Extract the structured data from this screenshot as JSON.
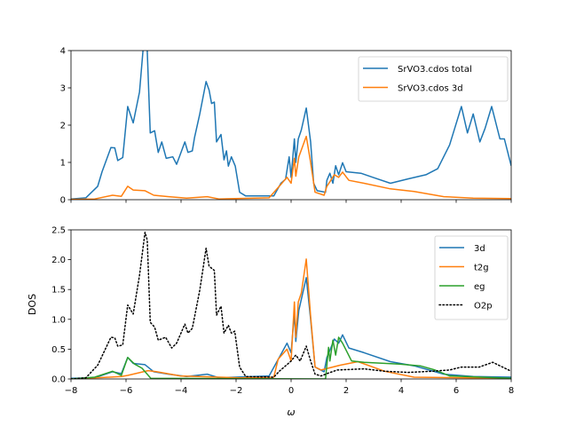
{
  "chart_data": [
    {
      "type": "line",
      "panel": "top",
      "xlim": [
        -8,
        8
      ],
      "ylim": [
        0,
        4
      ],
      "xticks": [
        -8,
        -6,
        -4,
        -2,
        0,
        2,
        4,
        6,
        8
      ],
      "xticklabels_shown": false,
      "yticks": [
        0,
        1,
        2,
        3,
        4
      ],
      "yticklabels": [
        "0",
        "1",
        "2",
        "3",
        "4"
      ],
      "xlabel": "",
      "ylabel": "",
      "grid": false,
      "legend": "top-right",
      "series": [
        {
          "name": "SrVO3.cdos total",
          "color": "#1f77b4",
          "style": "solid",
          "points": [
            [
              -8,
              0.02
            ],
            [
              -7.46,
              0.05
            ],
            [
              -7.03,
              0.36
            ],
            [
              -6.87,
              0.75
            ],
            [
              -6.55,
              1.4
            ],
            [
              -6.41,
              1.39
            ],
            [
              -6.3,
              1.05
            ],
            [
              -6.12,
              1.13
            ],
            [
              -5.94,
              2.5
            ],
            [
              -5.74,
              2.06
            ],
            [
              -5.51,
              2.89
            ],
            [
              -5.4,
              3.85
            ],
            [
              -5.33,
              4.5
            ],
            [
              -5.23,
              4.0
            ],
            [
              -5.12,
              1.79
            ],
            [
              -4.96,
              1.85
            ],
            [
              -4.83,
              1.27
            ],
            [
              -4.7,
              1.55
            ],
            [
              -4.54,
              1.11
            ],
            [
              -4.3,
              1.15
            ],
            [
              -4.16,
              0.95
            ],
            [
              -4.02,
              1.23
            ],
            [
              -3.86,
              1.55
            ],
            [
              -3.75,
              1.27
            ],
            [
              -3.59,
              1.31
            ],
            [
              -3.51,
              1.67
            ],
            [
              -3.32,
              2.3
            ],
            [
              -3.09,
              3.17
            ],
            [
              -2.98,
              2.94
            ],
            [
              -2.89,
              2.58
            ],
            [
              -2.79,
              2.62
            ],
            [
              -2.71,
              1.55
            ],
            [
              -2.55,
              1.75
            ],
            [
              -2.44,
              1.07
            ],
            [
              -2.35,
              1.31
            ],
            [
              -2.28,
              0.9
            ],
            [
              -2.17,
              1.15
            ],
            [
              -2.03,
              0.9
            ],
            [
              -1.87,
              0.2
            ],
            [
              -1.65,
              0.1
            ],
            [
              -0.63,
              0.1
            ],
            [
              -0.37,
              0.44
            ],
            [
              -0.2,
              0.55
            ],
            [
              -0.15,
              0.79
            ],
            [
              -0.07,
              1.15
            ],
            [
              0.0,
              0.6
            ],
            [
              0.12,
              1.63
            ],
            [
              0.17,
              1.0
            ],
            [
              0.26,
              1.63
            ],
            [
              0.37,
              1.87
            ],
            [
              0.55,
              2.46
            ],
            [
              0.71,
              1.55
            ],
            [
              0.82,
              0.44
            ],
            [
              0.95,
              0.24
            ],
            [
              1.25,
              0.2
            ],
            [
              1.3,
              0.52
            ],
            [
              1.41,
              0.71
            ],
            [
              1.52,
              0.44
            ],
            [
              1.62,
              0.91
            ],
            [
              1.73,
              0.67
            ],
            [
              1.87,
              0.99
            ],
            [
              2.0,
              0.75
            ],
            [
              2.54,
              0.71
            ],
            [
              2.97,
              0.6
            ],
            [
              3.61,
              0.44
            ],
            [
              4.26,
              0.56
            ],
            [
              4.9,
              0.67
            ],
            [
              5.33,
              0.83
            ],
            [
              5.76,
              1.47
            ],
            [
              6.19,
              2.5
            ],
            [
              6.41,
              1.79
            ],
            [
              6.62,
              2.3
            ],
            [
              6.86,
              1.55
            ],
            [
              7.05,
              1.91
            ],
            [
              7.29,
              2.5
            ],
            [
              7.59,
              1.63
            ],
            [
              7.75,
              1.63
            ],
            [
              8.0,
              0.91
            ]
          ]
        },
        {
          "name": "SrVO3.cdos 3d",
          "color": "#ff7f0e",
          "style": "solid",
          "points": [
            [
              -8,
              0.01
            ],
            [
              -7.14,
              0.02
            ],
            [
              -6.49,
              0.12
            ],
            [
              -6.17,
              0.09
            ],
            [
              -5.94,
              0.36
            ],
            [
              -5.74,
              0.26
            ],
            [
              -5.31,
              0.24
            ],
            [
              -4.99,
              0.12
            ],
            [
              -4.45,
              0.08
            ],
            [
              -3.8,
              0.04
            ],
            [
              -3.05,
              0.08
            ],
            [
              -2.62,
              0.02
            ],
            [
              -0.8,
              0.05
            ],
            [
              -0.42,
              0.37
            ],
            [
              -0.15,
              0.6
            ],
            [
              0.0,
              0.44
            ],
            [
              0.12,
              1.11
            ],
            [
              0.17,
              0.63
            ],
            [
              0.28,
              1.15
            ],
            [
              0.55,
              1.7
            ],
            [
              0.71,
              1.0
            ],
            [
              0.87,
              0.2
            ],
            [
              1.2,
              0.12
            ],
            [
              1.3,
              0.36
            ],
            [
              1.41,
              0.48
            ],
            [
              1.57,
              0.67
            ],
            [
              1.73,
              0.6
            ],
            [
              1.87,
              0.74
            ],
            [
              2.1,
              0.52
            ],
            [
              2.65,
              0.44
            ],
            [
              3.61,
              0.29
            ],
            [
              4.47,
              0.22
            ],
            [
              5.55,
              0.08
            ],
            [
              6.62,
              0.04
            ],
            [
              8.0,
              0.03
            ]
          ]
        }
      ]
    },
    {
      "type": "line",
      "panel": "bottom",
      "xlim": [
        -8,
        8
      ],
      "ylim": [
        0,
        2.5
      ],
      "xticks": [
        -8,
        -6,
        -4,
        -2,
        0,
        2,
        4,
        6,
        8
      ],
      "xticklabels": [
        "−8",
        "−6",
        "−4",
        "−2",
        "0",
        "2",
        "4",
        "6",
        "8"
      ],
      "yticks": [
        0,
        0.5,
        1,
        1.5,
        2,
        2.5
      ],
      "yticklabels": [
        "0.0",
        "0.5",
        "1.0",
        "1.5",
        "2.0",
        "2.5"
      ],
      "xlabel": "ω",
      "ylabel": "DOS",
      "grid": false,
      "legend": "top-right",
      "series": [
        {
          "name": "3d",
          "color": "#1f77b4",
          "style": "solid",
          "points": [
            [
              -8,
              0.01
            ],
            [
              -7.14,
              0.02
            ],
            [
              -6.49,
              0.12
            ],
            [
              -6.17,
              0.09
            ],
            [
              -5.94,
              0.36
            ],
            [
              -5.74,
              0.26
            ],
            [
              -5.31,
              0.24
            ],
            [
              -4.99,
              0.12
            ],
            [
              -4.45,
              0.08
            ],
            [
              -3.8,
              0.04
            ],
            [
              -3.05,
              0.08
            ],
            [
              -2.62,
              0.02
            ],
            [
              -0.8,
              0.05
            ],
            [
              -0.42,
              0.37
            ],
            [
              -0.15,
              0.6
            ],
            [
              0.0,
              0.44
            ],
            [
              0.12,
              1.11
            ],
            [
              0.17,
              0.63
            ],
            [
              0.28,
              1.15
            ],
            [
              0.55,
              1.7
            ],
            [
              0.71,
              1.0
            ],
            [
              0.87,
              0.2
            ],
            [
              1.2,
              0.12
            ],
            [
              1.3,
              0.36
            ],
            [
              1.41,
              0.48
            ],
            [
              1.57,
              0.67
            ],
            [
              1.73,
              0.6
            ],
            [
              1.87,
              0.74
            ],
            [
              2.1,
              0.52
            ],
            [
              2.65,
              0.44
            ],
            [
              3.61,
              0.29
            ],
            [
              4.47,
              0.22
            ],
            [
              5.55,
              0.08
            ],
            [
              6.62,
              0.04
            ],
            [
              8.0,
              0.03
            ]
          ]
        },
        {
          "name": "t2g",
          "color": "#ff7f0e",
          "style": "solid",
          "points": [
            [
              -8,
              0
            ],
            [
              -6.17,
              0.04
            ],
            [
              -5.94,
              0.06
            ],
            [
              -5.2,
              0.14
            ],
            [
              -4.88,
              0.12
            ],
            [
              -4.02,
              0.05
            ],
            [
              -1.87,
              0.02
            ],
            [
              -0.63,
              0.03
            ],
            [
              -0.47,
              0.33
            ],
            [
              -0.15,
              0.5
            ],
            [
              0,
              0.3
            ],
            [
              0.12,
              1.29
            ],
            [
              0.17,
              0.7
            ],
            [
              0.26,
              1.29
            ],
            [
              0.37,
              1.44
            ],
            [
              0.55,
              2.01
            ],
            [
              0.71,
              1.05
            ],
            [
              0.87,
              0.2
            ],
            [
              1.09,
              0.15
            ],
            [
              1.78,
              0.23
            ],
            [
              2.43,
              0.29
            ],
            [
              3.4,
              0.13
            ],
            [
              4.47,
              0.03
            ],
            [
              8,
              0.01
            ]
          ]
        },
        {
          "name": "eg",
          "color": "#2ca02c",
          "style": "solid",
          "points": [
            [
              -8,
              0
            ],
            [
              -7.14,
              0.03
            ],
            [
              -6.49,
              0.13
            ],
            [
              -6.17,
              0.06
            ],
            [
              -5.94,
              0.36
            ],
            [
              -5.69,
              0.25
            ],
            [
              -5.42,
              0.18
            ],
            [
              -5.1,
              0.01
            ],
            [
              1.25,
              0
            ],
            [
              1.36,
              0.53
            ],
            [
              1.41,
              0.3
            ],
            [
              1.52,
              0.65
            ],
            [
              1.62,
              0.4
            ],
            [
              1.73,
              0.7
            ],
            [
              1.87,
              0.6
            ],
            [
              2.2,
              0.3
            ],
            [
              2.65,
              0.28
            ],
            [
              3.94,
              0.25
            ],
            [
              4.69,
              0.22
            ],
            [
              5.23,
              0.15
            ],
            [
              5.76,
              0.05
            ],
            [
              8.0,
              0.01
            ]
          ]
        },
        {
          "name": "O2p",
          "color": "#000000",
          "style": "dotted",
          "points": [
            [
              -8,
              0
            ],
            [
              -7.46,
              0.02
            ],
            [
              -7.03,
              0.23
            ],
            [
              -6.55,
              0.7
            ],
            [
              -6.41,
              0.69
            ],
            [
              -6.3,
              0.55
            ],
            [
              -6.12,
              0.57
            ],
            [
              -5.94,
              1.24
            ],
            [
              -5.74,
              1.09
            ],
            [
              -5.51,
              1.74
            ],
            [
              -5.31,
              2.46
            ],
            [
              -5.23,
              2.33
            ],
            [
              -5.12,
              0.95
            ],
            [
              -4.96,
              0.87
            ],
            [
              -4.83,
              0.65
            ],
            [
              -4.56,
              0.7
            ],
            [
              -4.34,
              0.52
            ],
            [
              -4.16,
              0.6
            ],
            [
              -3.86,
              0.92
            ],
            [
              -3.75,
              0.77
            ],
            [
              -3.59,
              0.85
            ],
            [
              -3.32,
              1.49
            ],
            [
              -3.09,
              2.19
            ],
            [
              -2.98,
              1.89
            ],
            [
              -2.79,
              1.82
            ],
            [
              -2.71,
              1.07
            ],
            [
              -2.55,
              1.22
            ],
            [
              -2.44,
              0.77
            ],
            [
              -2.28,
              0.9
            ],
            [
              -2.17,
              0.77
            ],
            [
              -2.05,
              0.8
            ],
            [
              -1.87,
              0.2
            ],
            [
              -1.65,
              0.04
            ],
            [
              -0.63,
              0.03
            ],
            [
              -0.43,
              0.13
            ],
            [
              0.0,
              0.3
            ],
            [
              0.17,
              0.4
            ],
            [
              0.33,
              0.3
            ],
            [
              0.55,
              0.55
            ],
            [
              0.71,
              0.3
            ],
            [
              0.87,
              0.08
            ],
            [
              1.09,
              0.05
            ],
            [
              1.36,
              0.1
            ],
            [
              1.68,
              0.15
            ],
            [
              2.65,
              0.17
            ],
            [
              3.4,
              0.13
            ],
            [
              4.26,
              0.11
            ],
            [
              5.12,
              0.13
            ],
            [
              5.76,
              0.15
            ],
            [
              6.19,
              0.2
            ],
            [
              6.84,
              0.2
            ],
            [
              7.33,
              0.28
            ],
            [
              8.0,
              0.13
            ]
          ]
        }
      ]
    }
  ]
}
